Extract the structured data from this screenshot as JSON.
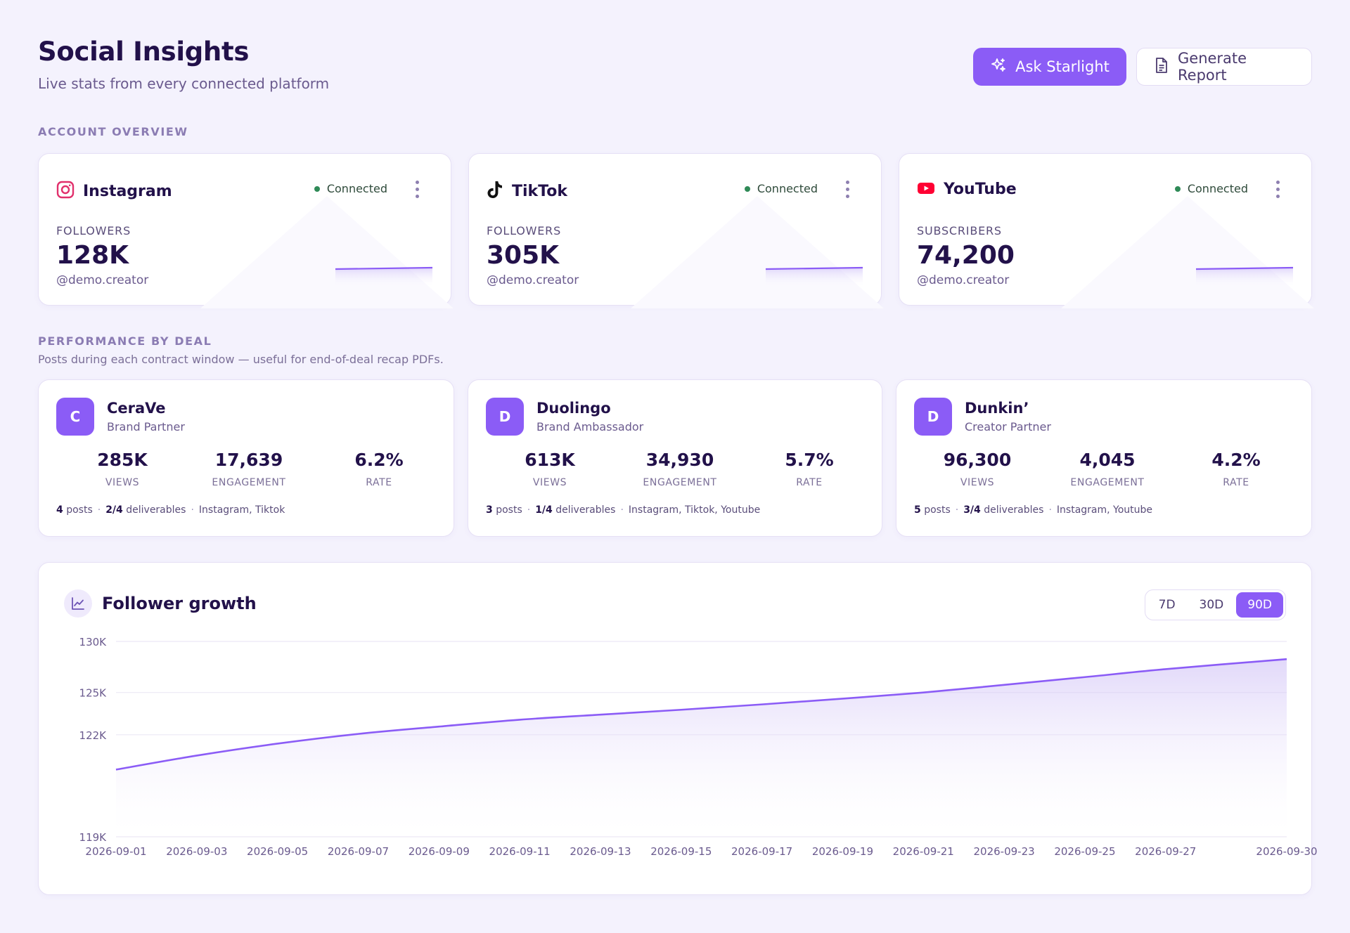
{
  "header": {
    "title": "Social Insights",
    "subtitle": "Live stats from every connected platform",
    "ask_label": "Ask Starlight",
    "report_label": "Generate Report"
  },
  "sections": {
    "overview_label": "ACCOUNT OVERVIEW",
    "deals_label": "PERFORMANCE BY DEAL",
    "deals_desc": "Posts during each contract window — useful for end-of-deal recap PDFs."
  },
  "platforms": [
    {
      "name": "Instagram",
      "status": "Connected",
      "metric_label": "FOLLOWERS",
      "metric_value": "128K",
      "handle": "@demo.creator",
      "icon": "instagram-icon",
      "color": "#e1306c"
    },
    {
      "name": "TikTok",
      "status": "Connected",
      "metric_label": "FOLLOWERS",
      "metric_value": "305K",
      "handle": "@demo.creator",
      "icon": "tiktok-icon",
      "color": "#111111"
    },
    {
      "name": "YouTube",
      "status": "Connected",
      "metric_label": "SUBSCRIBERS",
      "metric_value": "74,200",
      "handle": "@demo.creator",
      "icon": "youtube-icon",
      "color": "#ff0033"
    }
  ],
  "deals": [
    {
      "initial": "C",
      "name": "CeraVe",
      "role": "Brand Partner",
      "views": "285K",
      "engagement": "17,639",
      "rate": "6.2%",
      "views_label": "VIEWS",
      "engagement_label": "ENGAGEMENT",
      "rate_label": "RATE",
      "posts": "4",
      "posts_label": "posts",
      "deliverables": "2/4",
      "deliverables_label": "deliverables",
      "platforms": "Instagram, Tiktok"
    },
    {
      "initial": "D",
      "name": "Duolingo",
      "role": "Brand Ambassador",
      "views": "613K",
      "engagement": "34,930",
      "rate": "5.7%",
      "views_label": "VIEWS",
      "engagement_label": "ENGAGEMENT",
      "rate_label": "RATE",
      "posts": "3",
      "posts_label": "posts",
      "deliverables": "1/4",
      "deliverables_label": "deliverables",
      "platforms": "Instagram, Tiktok, Youtube"
    },
    {
      "initial": "D",
      "name": "Dunkin’",
      "role": "Creator Partner",
      "views": "96,300",
      "engagement": "4,045",
      "rate": "4.2%",
      "views_label": "VIEWS",
      "engagement_label": "ENGAGEMENT",
      "rate_label": "RATE",
      "posts": "5",
      "posts_label": "posts",
      "deliverables": "3/4",
      "deliverables_label": "deliverables",
      "platforms": "Instagram, Youtube"
    }
  ],
  "growth": {
    "title": "Follower growth",
    "ranges": [
      "7D",
      "30D",
      "90D"
    ],
    "active_range": "90D"
  },
  "colors": {
    "accent": "#8b5cf6",
    "connected": "#2f8a57"
  },
  "chart_data": {
    "type": "area",
    "x": [
      "2026-09-01",
      "2026-09-03",
      "2026-09-05",
      "2026-09-07",
      "2026-09-09",
      "2026-09-11",
      "2026-09-13",
      "2026-09-15",
      "2026-09-17",
      "2026-09-19",
      "2026-09-21",
      "2026-09-23",
      "2026-09-25",
      "2026-09-27",
      "2026-09-30"
    ],
    "x_ticks": [
      "2026-09-01",
      "2026-09-03",
      "2026-09-05",
      "2026-09-07",
      "2026-09-09",
      "2026-09-11",
      "2026-09-13",
      "2026-09-15",
      "2026-09-17",
      "2026-09-19",
      "2026-09-21",
      "2026-09-23",
      "2026-09-25",
      "2026-09-27",
      "2026-09-30"
    ],
    "series": [
      {
        "values": [
          120300,
          120900,
          121500,
          122050,
          122500,
          122950,
          123300,
          123650,
          124050,
          124500,
          125000,
          125650,
          126350,
          127100,
          128100
        ]
      }
    ],
    "y_ticks": [
      119000,
      122000,
      125000,
      130000
    ],
    "y_tick_labels": [
      "119K",
      "122K",
      "125K",
      "130K"
    ],
    "ylim": [
      119000,
      130000
    ],
    "y_scale": "sqrt",
    "grid": true,
    "legend": "none",
    "title": "Follower growth",
    "xlabel": "",
    "ylabel": ""
  }
}
